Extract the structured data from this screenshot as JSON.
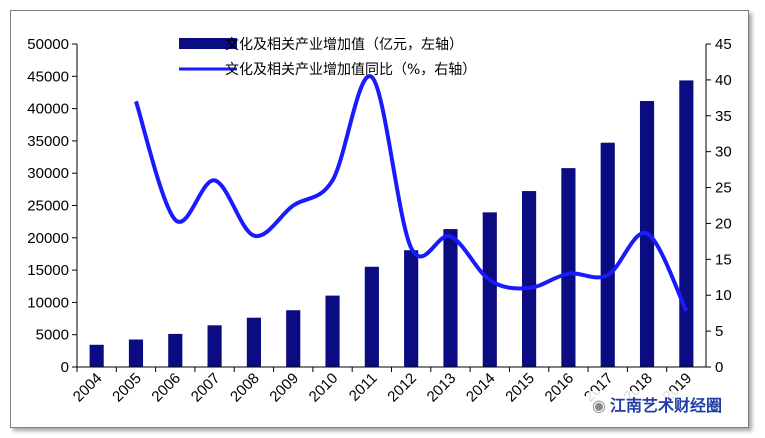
{
  "chart_data": {
    "type": "bar+line",
    "categories": [
      "2004",
      "2005",
      "2006",
      "2007",
      "2008",
      "2009",
      "2010",
      "2011",
      "2012",
      "2013",
      "2014",
      "2015",
      "2016",
      "2017",
      "2018",
      "2019"
    ],
    "series": [
      {
        "name": "文化及相关产业增加值（亿元，左轴）",
        "type": "bar",
        "axis": "left",
        "color": "#0b0b82",
        "values": [
          3440,
          4253,
          5123,
          6455,
          7630,
          8786,
          11052,
          15516,
          18071,
          21351,
          23940,
          27235,
          30785,
          34722,
          41171,
          44363
        ]
      },
      {
        "name": "文化及相关产业增加值同比（%，右轴）",
        "type": "line",
        "axis": "right",
        "color": "#1a1aff",
        "values": [
          null,
          37,
          20.5,
          26,
          18.3,
          22.5,
          26,
          40.4,
          16.6,
          18.2,
          12.1,
          11,
          13,
          12.8,
          18.6,
          7.8
        ]
      }
    ],
    "left_axis": {
      "min": 0,
      "max": 50000,
      "step": 5000,
      "ticks": [
        "0",
        "5000",
        "10000",
        "15000",
        "20000",
        "25000",
        "30000",
        "35000",
        "40000",
        "45000",
        "50000"
      ]
    },
    "right_axis": {
      "min": 0,
      "max": 45,
      "step": 5,
      "ticks": [
        "0",
        "5",
        "10",
        "15",
        "20",
        "25",
        "30",
        "35",
        "40",
        "45"
      ]
    },
    "legend": {
      "bar_label": "文化及相关产业增加值（亿元，左轴）",
      "line_label": "文化及相关产业增加值同比（%，右轴）"
    }
  },
  "watermark": {
    "icon": "wechat-icon",
    "text": "江南艺术财经圈"
  }
}
